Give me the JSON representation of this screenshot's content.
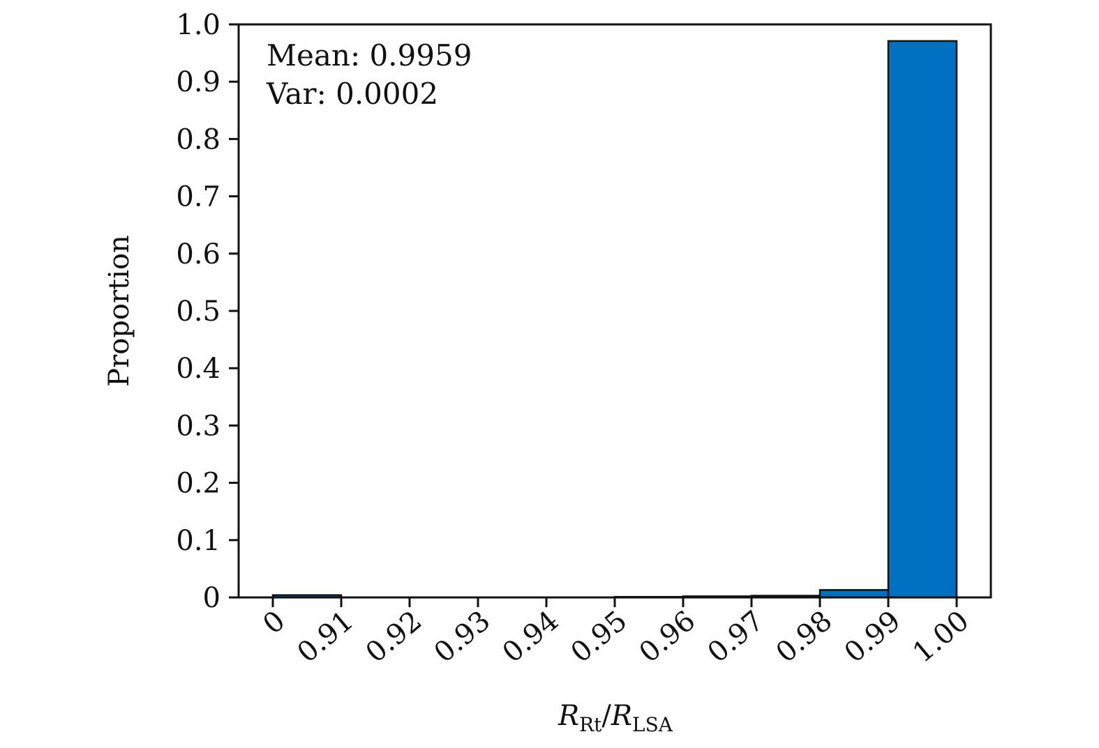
{
  "chart_data": {
    "type": "bar",
    "bin_edges": [
      "0",
      "0.91",
      "0.92",
      "0.93",
      "0.94",
      "0.95",
      "0.96",
      "0.97",
      "0.98",
      "0.99",
      "1.00"
    ],
    "values": [
      0.004,
      0.0,
      0.0,
      0.0,
      0.0,
      0.001,
      0.002,
      0.003,
      0.013,
      0.971
    ],
    "xlabel": {
      "main": "R",
      "sub1": "Rt",
      "sep": "/",
      "main2": "R",
      "sub2": "LSA"
    },
    "ylabel": "Proportion",
    "ylim": [
      0,
      1.0
    ],
    "yticks": [
      "0",
      "0.1",
      "0.2",
      "0.3",
      "0.4",
      "0.5",
      "0.6",
      "0.7",
      "0.8",
      "0.9",
      "1.0"
    ],
    "annotations": [
      "Mean: 0.9959",
      "Var: 0.0002"
    ],
    "grid": false,
    "bar_color": "#0070c0",
    "edge_color": "#111111"
  }
}
